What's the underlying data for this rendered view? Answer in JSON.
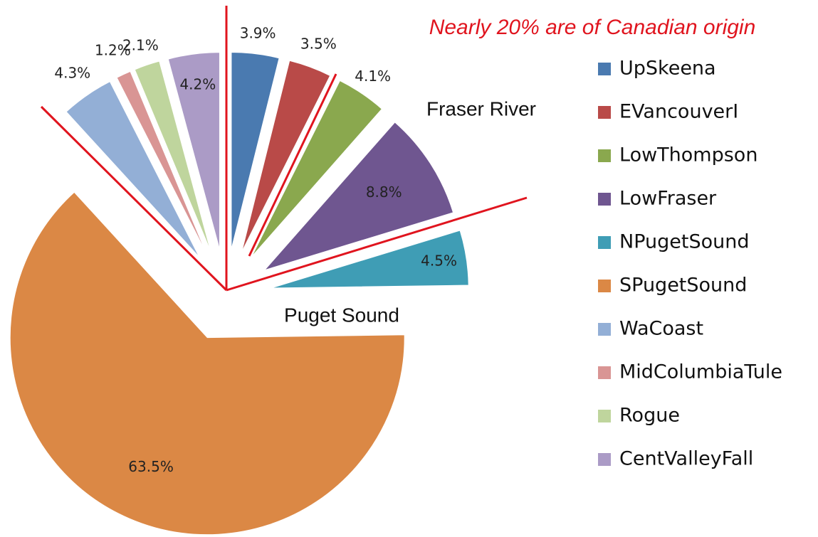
{
  "chart_data": {
    "type": "pie",
    "categories": [
      "UpSkeena",
      "EVancouverI",
      "LowThompson",
      "LowFraser",
      "NPugetSound",
      "SPugetSound",
      "WaCoast",
      "MidColumbiaTule",
      "Rogue",
      "CentValleyFall"
    ],
    "values": [
      3.9,
      3.5,
      4.1,
      8.8,
      4.5,
      63.5,
      4.3,
      1.2,
      2.1,
      4.2
    ],
    "value_labels": [
      "3.9%",
      "3.5%",
      "4.1%",
      "8.8%",
      "4.5%",
      "63.5%",
      "4.3%",
      "1.2%",
      "2.1%",
      "4.2%"
    ],
    "colors": [
      "#4a7ab0",
      "#b94a48",
      "#8aa84e",
      "#6f5690",
      "#3f9db5",
      "#db8845",
      "#93afd6",
      "#d99594",
      "#bfd59d",
      "#ab9bc6"
    ],
    "annotations": [
      "Nearly 20% are of Canadian origin",
      "Fraser River",
      "Puget Sound"
    ],
    "legend": "right"
  }
}
